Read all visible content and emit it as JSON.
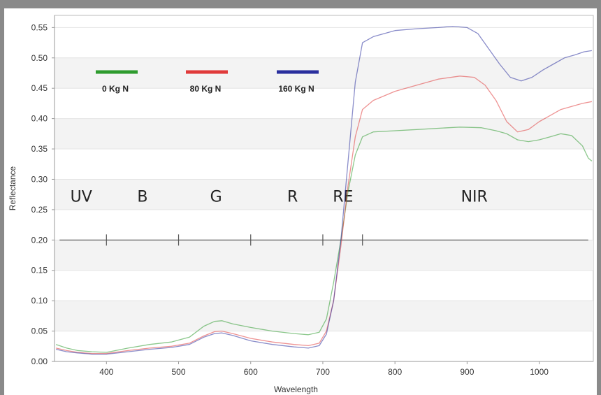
{
  "chart_data": {
    "type": "line",
    "xlabel": "Wavelength",
    "ylabel": "Reflectance",
    "xlim": [
      328,
      1075
    ],
    "ylim": [
      0.0,
      0.57
    ],
    "x_ticks": [
      400,
      500,
      600,
      700,
      800,
      900,
      1000
    ],
    "y_ticks": [
      0.0,
      0.05,
      0.1,
      0.15,
      0.2,
      0.25,
      0.3,
      0.35,
      0.4,
      0.45,
      0.5,
      0.55
    ],
    "x_tick_labels": [
      "400",
      "500",
      "600",
      "700",
      "800",
      "900",
      "1000"
    ],
    "y_tick_labels": [
      "0.00",
      "0.05",
      "0.10",
      "0.15",
      "0.20",
      "0.25",
      "0.30",
      "0.35",
      "0.40",
      "0.45",
      "0.50",
      "0.55"
    ],
    "legend_position": "top-left",
    "series": [
      {
        "name": "0 Kg N",
        "color": "#2e9b2e",
        "points": [
          [
            330,
            0.028
          ],
          [
            345,
            0.022
          ],
          [
            360,
            0.018
          ],
          [
            380,
            0.016
          ],
          [
            400,
            0.015
          ],
          [
            430,
            0.022
          ],
          [
            460,
            0.028
          ],
          [
            490,
            0.032
          ],
          [
            515,
            0.04
          ],
          [
            535,
            0.058
          ],
          [
            550,
            0.066
          ],
          [
            560,
            0.067
          ],
          [
            575,
            0.062
          ],
          [
            600,
            0.056
          ],
          [
            630,
            0.05
          ],
          [
            660,
            0.046
          ],
          [
            680,
            0.044
          ],
          [
            695,
            0.048
          ],
          [
            705,
            0.07
          ],
          [
            715,
            0.13
          ],
          [
            725,
            0.2
          ],
          [
            735,
            0.28
          ],
          [
            745,
            0.34
          ],
          [
            755,
            0.37
          ],
          [
            770,
            0.378
          ],
          [
            800,
            0.38
          ],
          [
            830,
            0.382
          ],
          [
            860,
            0.384
          ],
          [
            890,
            0.386
          ],
          [
            920,
            0.385
          ],
          [
            940,
            0.38
          ],
          [
            955,
            0.375
          ],
          [
            970,
            0.365
          ],
          [
            985,
            0.362
          ],
          [
            1000,
            0.365
          ],
          [
            1015,
            0.37
          ],
          [
            1030,
            0.375
          ],
          [
            1045,
            0.372
          ],
          [
            1060,
            0.355
          ],
          [
            1068,
            0.335
          ],
          [
            1073,
            0.33
          ]
        ]
      },
      {
        "name": "80 Kg N",
        "color": "#e03a3a",
        "points": [
          [
            330,
            0.022
          ],
          [
            345,
            0.018
          ],
          [
            360,
            0.015
          ],
          [
            380,
            0.013
          ],
          [
            400,
            0.013
          ],
          [
            430,
            0.018
          ],
          [
            460,
            0.022
          ],
          [
            490,
            0.025
          ],
          [
            515,
            0.03
          ],
          [
            535,
            0.042
          ],
          [
            550,
            0.049
          ],
          [
            560,
            0.05
          ],
          [
            575,
            0.046
          ],
          [
            600,
            0.038
          ],
          [
            630,
            0.032
          ],
          [
            660,
            0.028
          ],
          [
            680,
            0.026
          ],
          [
            695,
            0.03
          ],
          [
            705,
            0.05
          ],
          [
            715,
            0.1
          ],
          [
            725,
            0.19
          ],
          [
            735,
            0.29
          ],
          [
            745,
            0.37
          ],
          [
            755,
            0.415
          ],
          [
            770,
            0.43
          ],
          [
            800,
            0.445
          ],
          [
            830,
            0.455
          ],
          [
            860,
            0.465
          ],
          [
            890,
            0.47
          ],
          [
            910,
            0.468
          ],
          [
            925,
            0.455
          ],
          [
            940,
            0.43
          ],
          [
            955,
            0.395
          ],
          [
            970,
            0.378
          ],
          [
            985,
            0.382
          ],
          [
            1000,
            0.395
          ],
          [
            1015,
            0.405
          ],
          [
            1030,
            0.415
          ],
          [
            1045,
            0.42
          ],
          [
            1060,
            0.425
          ],
          [
            1073,
            0.428
          ]
        ]
      },
      {
        "name": "160 Kg N",
        "color": "#2a2f9e",
        "points": [
          [
            330,
            0.02
          ],
          [
            345,
            0.016
          ],
          [
            360,
            0.014
          ],
          [
            380,
            0.012
          ],
          [
            400,
            0.012
          ],
          [
            430,
            0.016
          ],
          [
            460,
            0.02
          ],
          [
            490,
            0.023
          ],
          [
            515,
            0.028
          ],
          [
            535,
            0.04
          ],
          [
            550,
            0.046
          ],
          [
            560,
            0.047
          ],
          [
            575,
            0.043
          ],
          [
            600,
            0.034
          ],
          [
            630,
            0.028
          ],
          [
            660,
            0.024
          ],
          [
            680,
            0.022
          ],
          [
            695,
            0.026
          ],
          [
            705,
            0.045
          ],
          [
            715,
            0.1
          ],
          [
            725,
            0.2
          ],
          [
            735,
            0.33
          ],
          [
            745,
            0.46
          ],
          [
            755,
            0.525
          ],
          [
            770,
            0.535
          ],
          [
            800,
            0.545
          ],
          [
            830,
            0.548
          ],
          [
            860,
            0.55
          ],
          [
            880,
            0.552
          ],
          [
            900,
            0.55
          ],
          [
            915,
            0.54
          ],
          [
            930,
            0.515
          ],
          [
            945,
            0.49
          ],
          [
            960,
            0.468
          ],
          [
            975,
            0.462
          ],
          [
            990,
            0.468
          ],
          [
            1005,
            0.48
          ],
          [
            1020,
            0.49
          ],
          [
            1035,
            0.5
          ],
          [
            1050,
            0.505
          ],
          [
            1062,
            0.51
          ],
          [
            1073,
            0.512
          ]
        ]
      }
    ],
    "bands": [
      {
        "label": "UV",
        "x": 365
      },
      {
        "label": "B",
        "x": 450
      },
      {
        "label": "G",
        "x": 552
      },
      {
        "label": "R",
        "x": 658
      },
      {
        "label": "RE",
        "x": 728
      },
      {
        "label": "NIR",
        "x": 910
      }
    ],
    "band_line": {
      "y": 0.2,
      "x_from": 335,
      "x_to": 1068,
      "ticks": [
        400,
        500,
        600,
        700,
        755
      ]
    }
  }
}
